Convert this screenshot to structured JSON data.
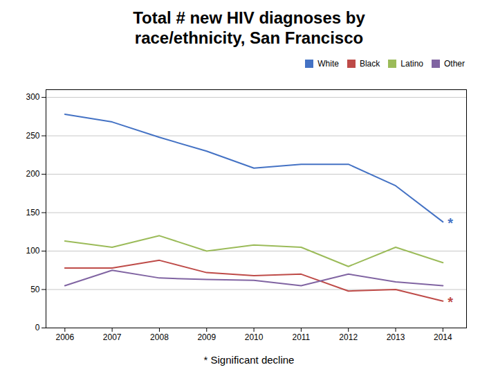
{
  "chart_data": {
    "type": "line",
    "title": "Total # new HIV diagnoses by\nrace/ethnicity, San Francisco",
    "x": [
      2006,
      2007,
      2008,
      2009,
      2010,
      2011,
      2012,
      2013,
      2014
    ],
    "series": [
      {
        "name": "White",
        "color": "#4472C4",
        "values": [
          278,
          268,
          248,
          230,
          208,
          213,
          213,
          185,
          138
        ]
      },
      {
        "name": "Black",
        "color": "#BE4B48",
        "values": [
          78,
          78,
          88,
          72,
          68,
          70,
          48,
          50,
          35
        ]
      },
      {
        "name": "Latino",
        "color": "#9BBB59",
        "values": [
          113,
          105,
          120,
          100,
          108,
          105,
          80,
          105,
          85
        ]
      },
      {
        "name": "Other",
        "color": "#8064A2",
        "values": [
          55,
          75,
          65,
          63,
          62,
          55,
          70,
          60,
          55
        ]
      }
    ],
    "annotations": [
      {
        "text": "*",
        "x": 2014,
        "y": 138,
        "color": "#4472C4"
      },
      {
        "text": "*",
        "x": 2014,
        "y": 35,
        "color": "#BE4B48"
      }
    ],
    "caption": "* Significant decline",
    "xlim": [
      2005.6,
      2014.5
    ],
    "xticks": [
      2006,
      2007,
      2008,
      2009,
      2010,
      2011,
      2012,
      2013,
      2014
    ],
    "ylim": [
      0,
      310
    ],
    "yticks": [
      0,
      50,
      100,
      150,
      200,
      250,
      300
    ],
    "grid": "y",
    "legend": "upper right"
  }
}
